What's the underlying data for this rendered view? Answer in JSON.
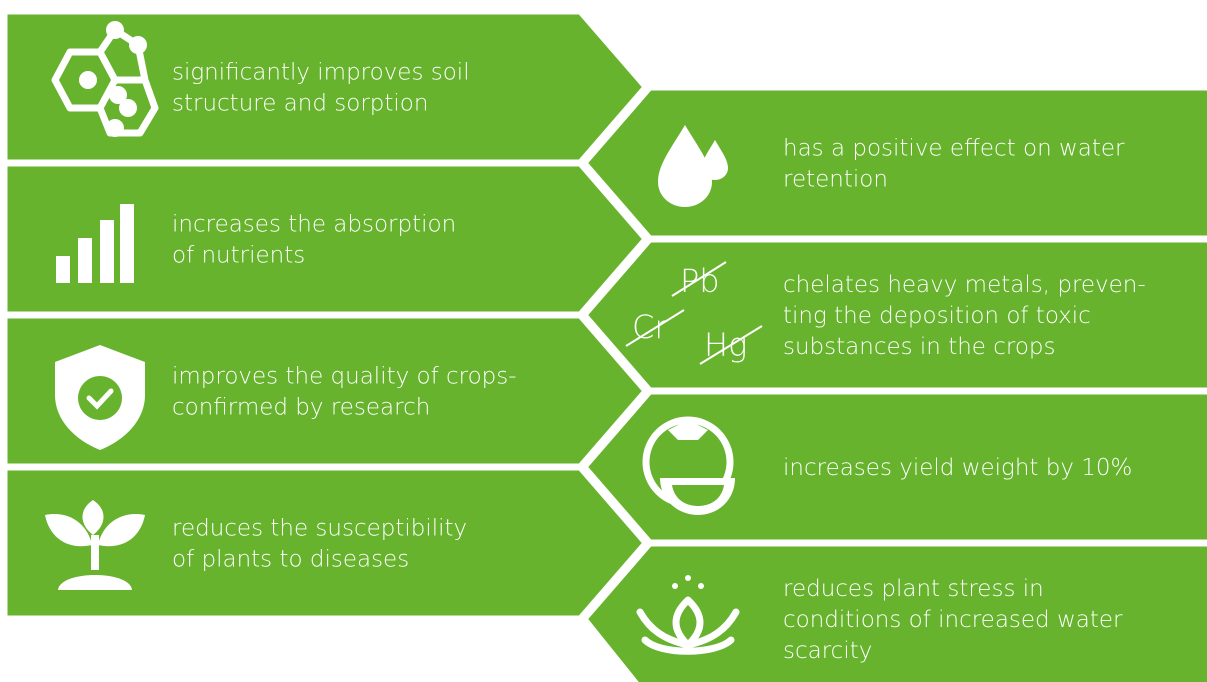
{
  "left_items": [
    {
      "lines": [
        "significantly improves soil",
        "structure and sorption"
      ]
    },
    {
      "lines": [
        "increases the absorption",
        "of nutrients"
      ]
    },
    {
      "lines": [
        "improves  the quality of crops-",
        "confirmed by research"
      ]
    },
    {
      "lines": [
        "reduces the susceptibility",
        "of plants to diseases"
      ]
    }
  ],
  "right_items": [
    {
      "lines": [
        "has a positive effect on water",
        "retention"
      ]
    },
    {
      "lines": [
        "chelates heavy metals, preven-",
        "ting the deposition of toxic",
        "substances in the crops"
      ]
    },
    {
      "lines": [
        "increases yield weight by 10%"
      ]
    },
    {
      "lines": [
        "reduces plant stress in",
        "conditions of increased water",
        "scarcity"
      ]
    }
  ],
  "metal_labels": [
    "Pb",
    "Cr",
    "Hg"
  ]
}
